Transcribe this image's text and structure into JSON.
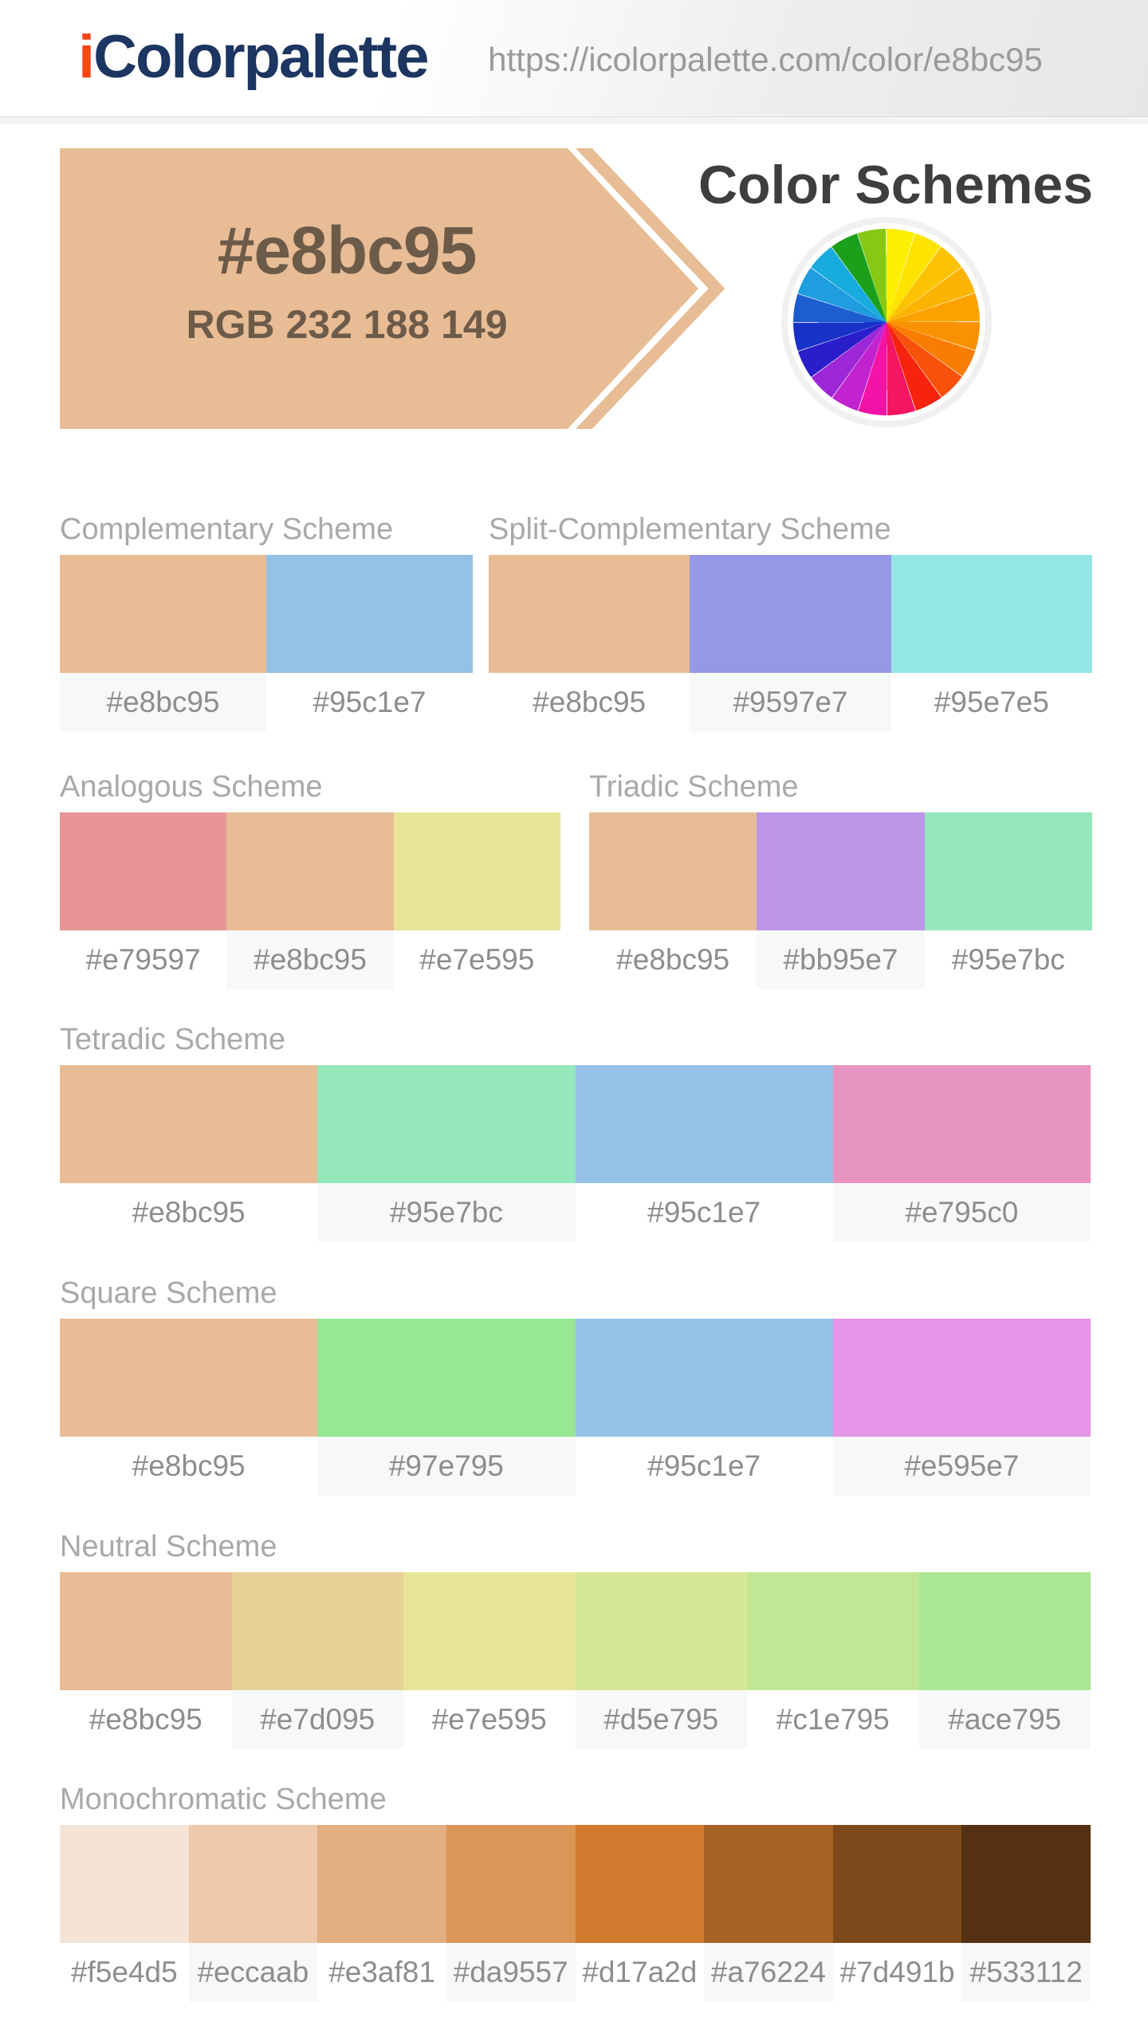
{
  "header": {
    "logo": {
      "accent": "i",
      "text": "Colorpalette"
    },
    "url": "https://icolorpalette.com/color/e8bc95"
  },
  "banner": {
    "hex": "#e8bc95",
    "rgb": "RGB 232 188 149",
    "background": "#e8bc95",
    "text_color": "#6d5b49"
  },
  "page_title": "Color Schemes",
  "color_wheel_segments": [
    "#fcef00",
    "#fde300",
    "#fcc302",
    "#fcb302",
    "#fba201",
    "#fa9101",
    "#f97d02",
    "#f8510a",
    "#f6230e",
    "#f41563",
    "#f313a7",
    "#c023cf",
    "#9b27d6",
    "#2a1ecb",
    "#1832c8",
    "#1c5ed0",
    "#1e9ddf",
    "#18abdd",
    "#1ba01b",
    "#86c813"
  ],
  "schemes": [
    {
      "name": "Complementary Scheme",
      "colors": [
        "#e8bc95",
        "#95c1e7"
      ]
    },
    {
      "name": "Split-Complementary Scheme",
      "colors": [
        "#e8bc95",
        "#9597e7",
        "#95e7e5"
      ]
    },
    {
      "name": "Analogous Scheme",
      "colors": [
        "#e79597",
        "#e8bc95",
        "#e7e595"
      ]
    },
    {
      "name": "Triadic Scheme",
      "colors": [
        "#e8bc95",
        "#bb95e7",
        "#95e7bc"
      ]
    },
    {
      "name": "Tetradic Scheme",
      "colors": [
        "#e8bc95",
        "#95e7bc",
        "#95c1e7",
        "#e795c0"
      ]
    },
    {
      "name": "Square Scheme",
      "colors": [
        "#e8bc95",
        "#97e795",
        "#95c1e7",
        "#e595e7"
      ]
    },
    {
      "name": "Neutral Scheme",
      "colors": [
        "#e8bc95",
        "#e7d095",
        "#e7e595",
        "#d5e795",
        "#c1e795",
        "#ace795"
      ]
    },
    {
      "name": "Monochromatic Scheme",
      "colors": [
        "#f5e4d5",
        "#eccaab",
        "#e3af81",
        "#da9557",
        "#d17a2d",
        "#a76224",
        "#7d491b",
        "#533112"
      ]
    }
  ]
}
